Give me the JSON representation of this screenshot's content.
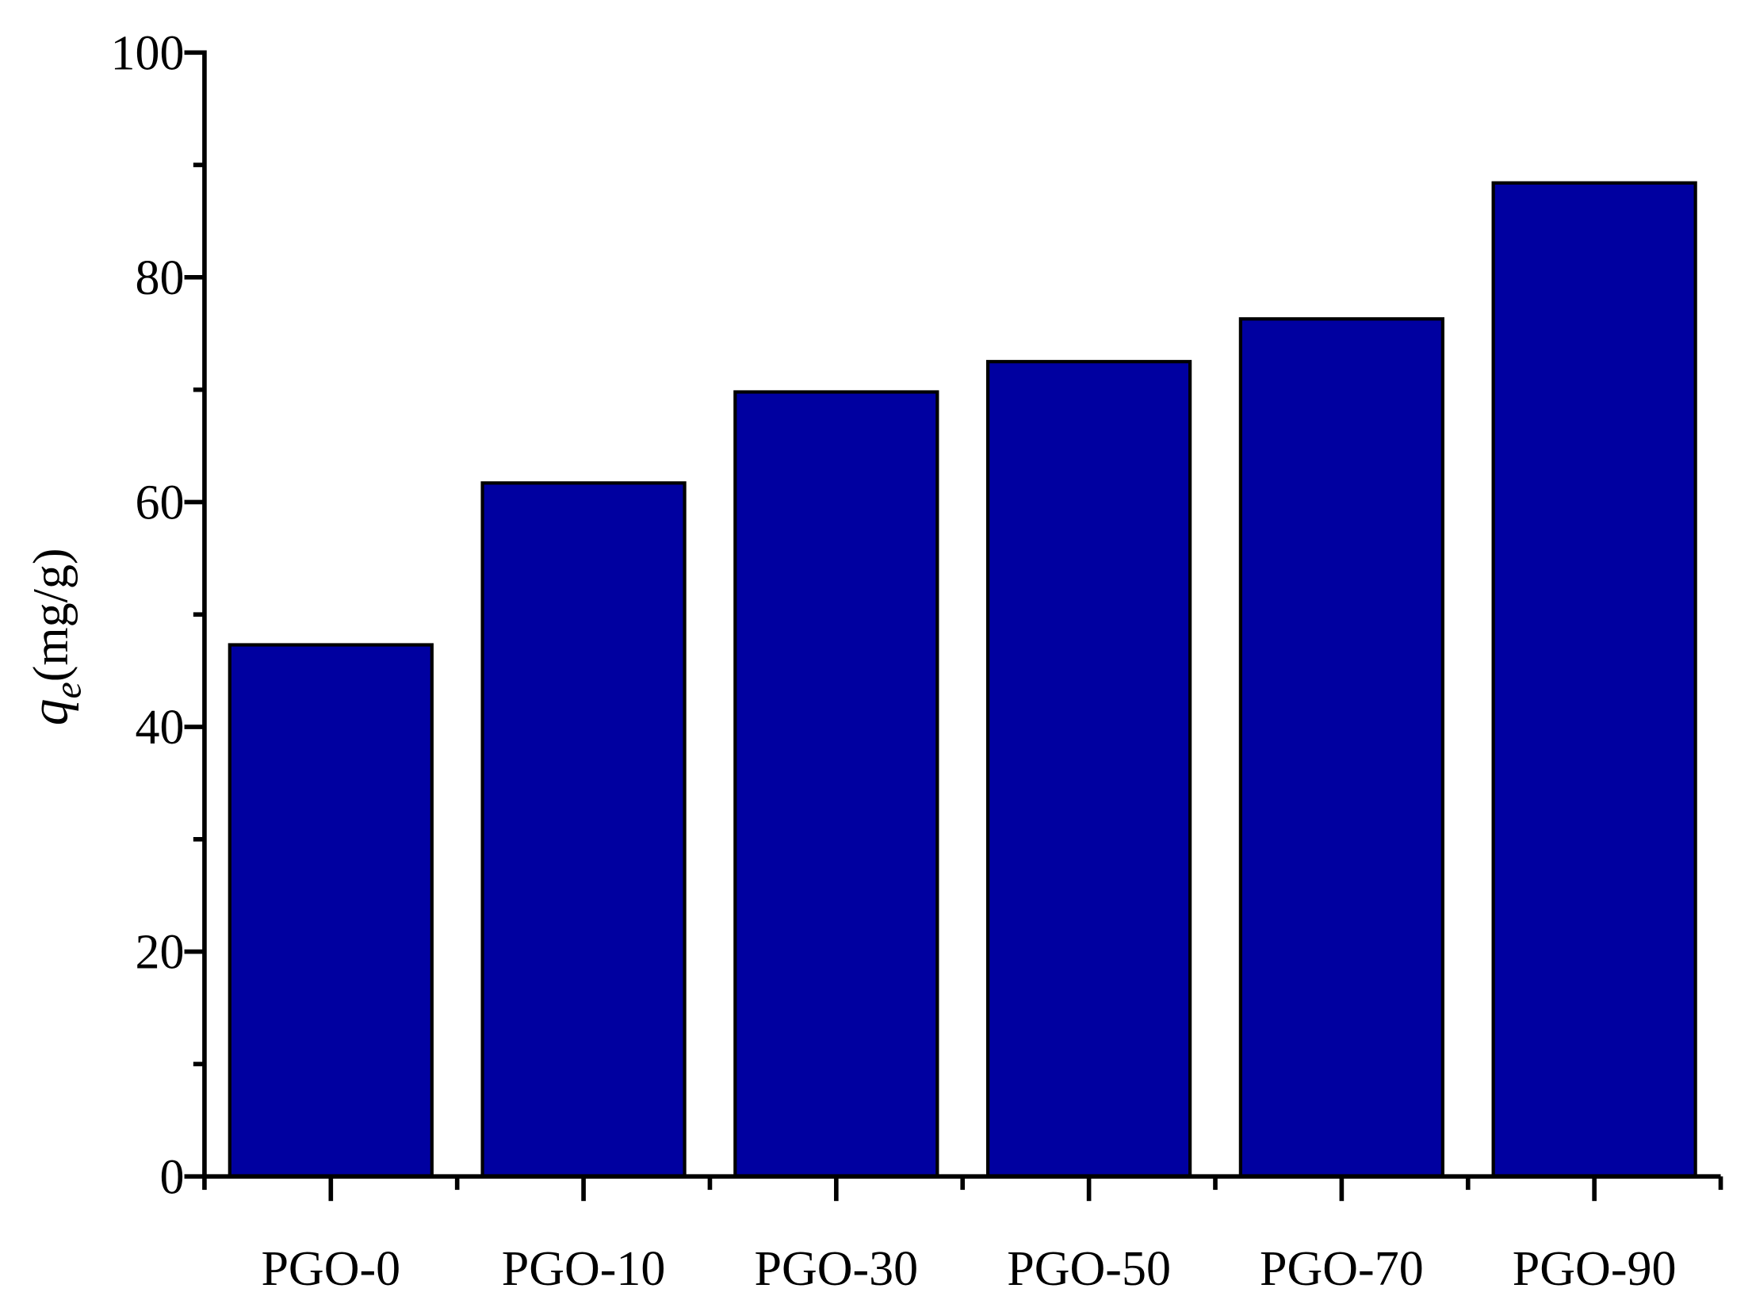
{
  "chart_data": {
    "type": "bar",
    "ylabel": {
      "symbol": "q",
      "subscript": "e",
      "unit": "(mg/g)"
    },
    "categories": [
      "PGO-0",
      "PGO-10",
      "PGO-30",
      "PGO-50",
      "PGO-70",
      "PGO-90"
    ],
    "values": [
      47.3,
      61.7,
      69.8,
      72.5,
      76.3,
      88.4
    ],
    "color": "#0000a0",
    "ylim": [
      0,
      100
    ],
    "yticks": [
      0,
      20,
      40,
      60,
      80,
      100
    ],
    "grid": false
  }
}
